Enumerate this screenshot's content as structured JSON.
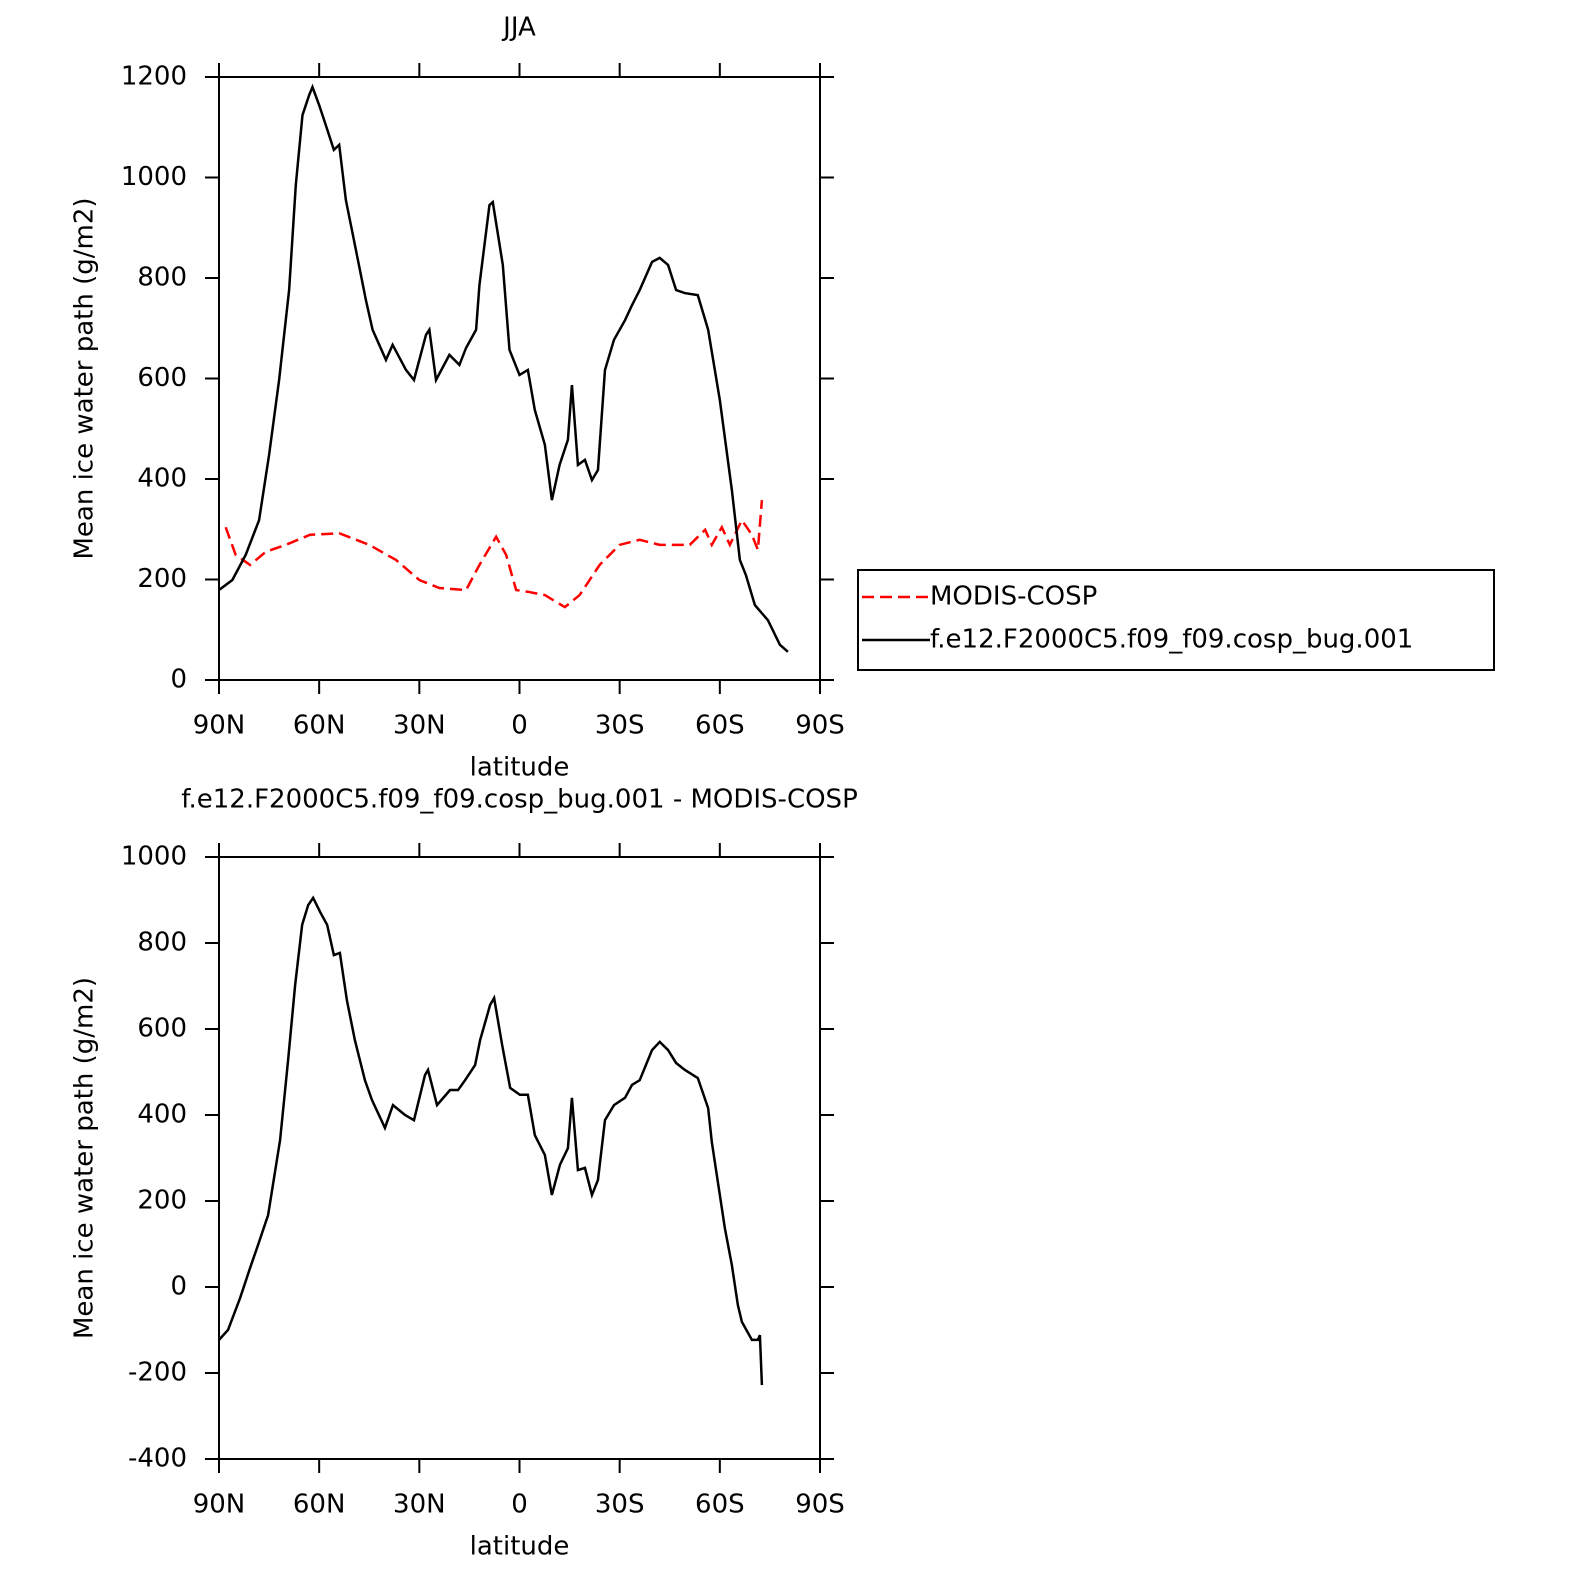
{
  "chart_data": [
    {
      "type": "line",
      "title": "JJA",
      "xlabel": "latitude",
      "ylabel": "Mean ice water path (g/m2)",
      "xlim": [
        90,
        -90
      ],
      "xticks": [
        {
          "value": 90,
          "label": "90N"
        },
        {
          "value": 60,
          "label": "60N"
        },
        {
          "value": 30,
          "label": "30N"
        },
        0,
        {
          "value": -30,
          "label": "30S"
        },
        {
          "value": -60,
          "label": "60S"
        },
        {
          "value": -90,
          "label": "90S"
        }
      ],
      "ylim": [
        0,
        1200
      ],
      "yticks": [
        0,
        200,
        400,
        600,
        800,
        1000,
        1200
      ],
      "legend": "right",
      "series": [
        {
          "name": "MODIS-COSP",
          "color": "#ff0000",
          "dash": true,
          "x": [
            88,
            85,
            80.7,
            76,
            70,
            62.7,
            54,
            45,
            37,
            30,
            24,
            16,
            12,
            7,
            4,
            1,
            -3,
            -7.6,
            -13.6,
            -18,
            -24,
            -30,
            -36,
            -42,
            -51,
            -55.6,
            -57.6,
            -60.6,
            -63,
            -66.6,
            -69.6,
            -71.4,
            -72.6
          ],
          "values": [
            304,
            249,
            229,
            255,
            269,
            289,
            292,
            269,
            239,
            199,
            183,
            179,
            229,
            285,
            249,
            179,
            175,
            169,
            145,
            169,
            229,
            269,
            279,
            269,
            269,
            299,
            269,
            304,
            269,
            318,
            289,
            259,
            358
          ]
        },
        {
          "name": "f.e12.F2000C5.f09_f09.cosp_bug.001",
          "color": "#000000",
          "dash": false,
          "x": [
            90,
            86,
            82,
            78,
            75,
            72,
            69,
            67,
            65,
            63,
            62,
            60,
            58,
            55.6,
            54,
            52,
            49,
            46,
            44,
            40,
            38,
            34,
            31.6,
            28,
            27,
            25,
            21,
            18,
            16,
            13,
            12,
            9,
            8,
            5,
            3,
            0,
            -2.5,
            -4.6,
            -7.6,
            -9.7,
            -12,
            -14.5,
            -15.7,
            -17.5,
            -19.6,
            -21.7,
            -23.5,
            -25.6,
            -28.3,
            -31.6,
            -33.7,
            -36,
            -39.7,
            -42,
            -44.5,
            -46.9,
            -49.5,
            -53.4,
            -56.5,
            -60,
            -63.6,
            -66,
            -67.8,
            -70.5,
            -74.4,
            -78,
            -80.4
          ],
          "values": [
            179,
            199,
            249,
            318,
            448,
            597,
            776,
            985,
            1124,
            1164,
            1180,
            1144,
            1104,
            1055,
            1065,
            955,
            856,
            756,
            697,
            637,
            667,
            617,
            597,
            687,
            697,
            597,
            647,
            627,
            661,
            697,
            786,
            945,
            951,
            826,
            657,
            607,
            617,
            537,
            468,
            358,
            428,
            478,
            587,
            428,
            438,
            398,
            418,
            617,
            677,
            716,
            746,
            776,
            832,
            840,
            826,
            776,
            770,
            766,
            697,
            557,
            378,
            239,
            209,
            149,
            119,
            70,
            56
          ]
        }
      ]
    },
    {
      "type": "line",
      "title": "f.e12.F2000C5.f09_f09.cosp_bug.001 - MODIS-COSP",
      "xlabel": "latitude",
      "ylabel": "Mean ice water path (g/m2)",
      "xlim": [
        90,
        -90
      ],
      "xticks": [
        {
          "value": 90,
          "label": "90N"
        },
        {
          "value": 60,
          "label": "60N"
        },
        {
          "value": 30,
          "label": "30N"
        },
        0,
        {
          "value": -30,
          "label": "30S"
        },
        {
          "value": -60,
          "label": "60S"
        },
        {
          "value": -90,
          "label": "90S"
        }
      ],
      "ylim": [
        -400,
        1000
      ],
      "yticks": [
        -400,
        -200,
        0,
        200,
        400,
        600,
        800,
        1000
      ],
      "series": [
        {
          "color": "#000000",
          "dash": false,
          "x": [
            90,
            87.3,
            83.7,
            80.7,
            78.3,
            75.3,
            71.7,
            69.3,
            67.2,
            65.1,
            63.3,
            61.8,
            59.7,
            57.6,
            55.6,
            53.8,
            51.7,
            49.3,
            46.3,
            44.2,
            40.3,
            37.9,
            34.3,
            31.6,
            28.3,
            27.4,
            24.7,
            20.8,
            18.4,
            16.3,
            13.3,
            11.8,
            8.8,
            7.6,
            5.2,
            2.8,
            -0.1,
            -2.5,
            -4.6,
            -7.6,
            -9.7,
            -12.1,
            -14.5,
            -15.7,
            -17.5,
            -19.6,
            -21.7,
            -23.5,
            -25.6,
            -28.3,
            -31.6,
            -33.7,
            -36,
            -39.7,
            -42,
            -44.5,
            -46.9,
            -49.5,
            -53.4,
            -56.5,
            -57.6,
            -60,
            -61.5,
            -63.6,
            -65.4,
            -66.6,
            -69.6,
            -71.4,
            -72,
            -72.6
          ],
          "values": [
            -123,
            -100,
            -26,
            44,
            98,
            167,
            342,
            528,
            702,
            842,
            888,
            905,
            872,
            842,
            772,
            777,
            667,
            574,
            481,
            435,
            370,
            423,
            400,
            388,
            493,
            505,
            423,
            458,
            458,
            481,
            516,
            574,
            656,
            672,
            563,
            463,
            447,
            447,
            353,
            307,
            214,
            284,
            323,
            440,
            272,
            277,
            214,
            249,
            388,
            423,
            440,
            470,
            481,
            551,
            570,
            551,
            521,
            505,
            486,
            416,
            337,
            214,
            137,
            51,
            -42,
            -81,
            -123,
            -123,
            -112,
            -228
          ]
        }
      ]
    }
  ]
}
